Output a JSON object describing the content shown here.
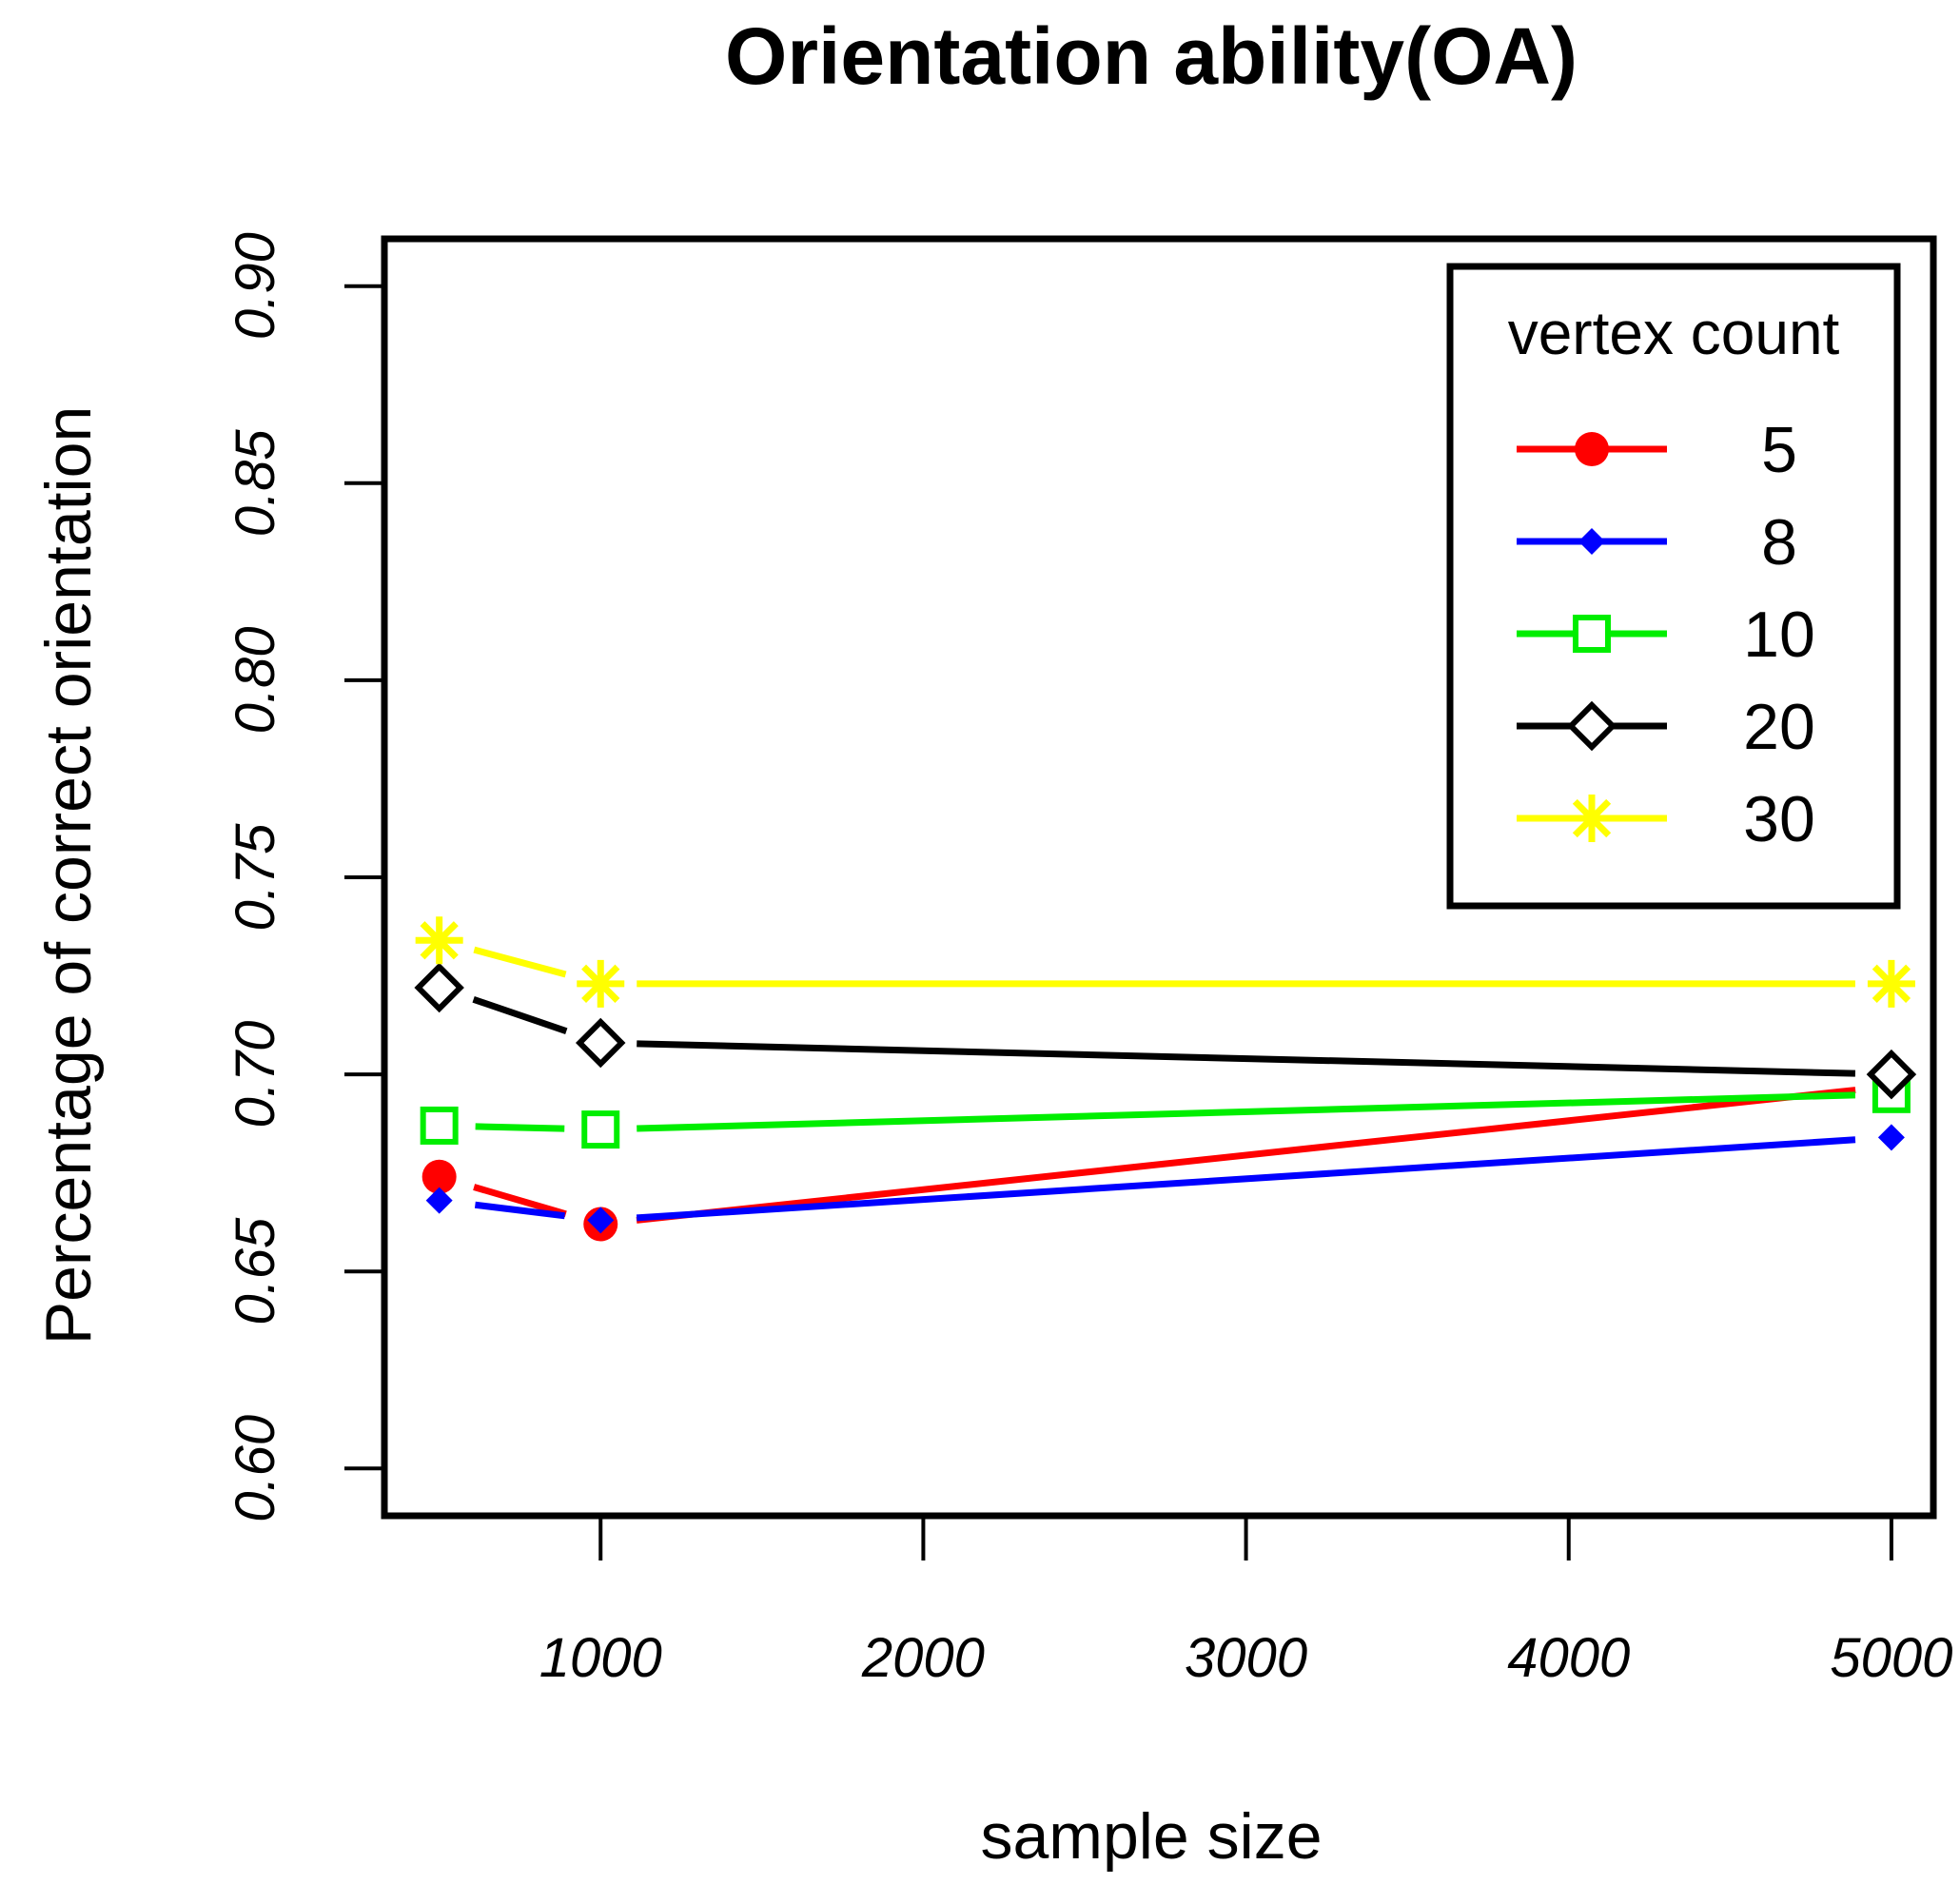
{
  "chart_data": {
    "type": "line",
    "title": "Orientation ability(OA)",
    "xlabel": "sample size",
    "ylabel": "Percentage of correct orientation",
    "xlim": [
      330,
      5130
    ],
    "ylim": [
      0.588,
      0.912
    ],
    "xticks": [
      1000,
      2000,
      3000,
      4000,
      5000
    ],
    "xtick_labels": [
      "1000",
      "2000",
      "3000",
      "4000",
      "5000"
    ],
    "yticks": [
      0.6,
      0.65,
      0.7,
      0.75,
      0.8,
      0.85,
      0.9
    ],
    "ytick_labels": [
      "0.60",
      "0.65",
      "0.70",
      "0.75",
      "0.80",
      "0.85",
      "0.90"
    ],
    "x": [
      500,
      1000,
      5000
    ],
    "legend": {
      "title": "vertex count",
      "position": "top-right"
    },
    "series": [
      {
        "name": "5",
        "color": "#ff0000",
        "marker": "filled-circle",
        "values": [
          0.674,
          0.662,
          0.697
        ]
      },
      {
        "name": "8",
        "color": "#0000ff",
        "marker": "filled-diamond",
        "values": [
          0.668,
          0.663,
          0.684
        ]
      },
      {
        "name": "10",
        "color": "#00ee00",
        "marker": "open-square",
        "values": [
          0.687,
          0.686,
          0.695
        ]
      },
      {
        "name": "20",
        "color": "#000000",
        "marker": "open-diamond",
        "values": [
          0.722,
          0.708,
          0.7
        ]
      },
      {
        "name": "30",
        "color": "#ffff00",
        "marker": "asterisk",
        "values": [
          0.734,
          0.723,
          0.723
        ]
      }
    ]
  }
}
